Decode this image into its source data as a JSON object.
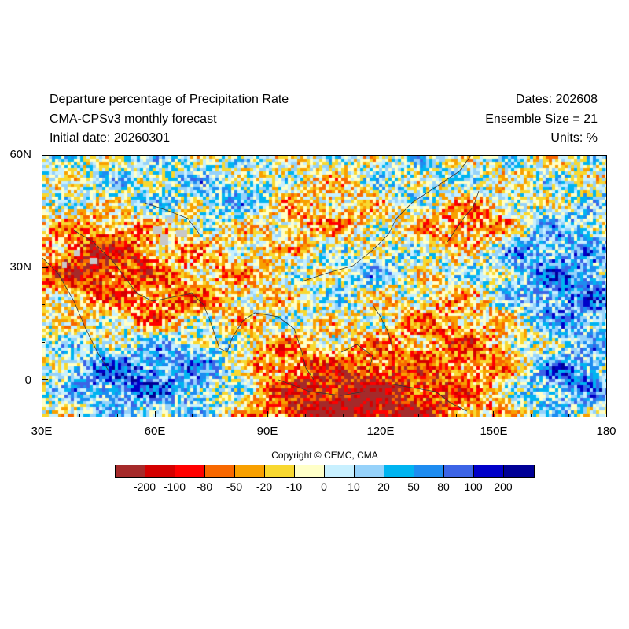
{
  "header": {
    "title": "Departure percentage of Precipitation Rate",
    "model": "CMA-CPSv3 monthly forecast",
    "initial_date": "Initial date: 20260301",
    "dates": "Dates: 202608",
    "ensemble": "Ensemble Size = 21",
    "units": "Units: %"
  },
  "map": {
    "lon_range": [
      30,
      180
    ],
    "lat_range": [
      -10,
      60
    ],
    "lat_labels": [
      {
        "text": "60N",
        "lat": 60
      },
      {
        "text": "30N",
        "lat": 30
      },
      {
        "text": "0",
        "lat": 0
      }
    ],
    "lon_labels": [
      {
        "text": "30E",
        "lon": 30
      },
      {
        "text": "60E",
        "lon": 60
      },
      {
        "text": "90E",
        "lon": 90
      },
      {
        "text": "120E",
        "lon": 120
      },
      {
        "text": "150E",
        "lon": 150
      },
      {
        "text": "180",
        "lon": 180
      }
    ]
  },
  "copyright": "Copyright © CEMC, CMA",
  "colorbar": {
    "colors": [
      "#a52a2a",
      "#d40000",
      "#ff0000",
      "#f86800",
      "#f8a000",
      "#f8d830",
      "#ffffc8",
      "#c8f0ff",
      "#96d2fa",
      "#00b4f0",
      "#1e8cf0",
      "#3c64e6",
      "#0000c8",
      "#000096"
    ],
    "labels": [
      "-200",
      "-100",
      "-80",
      "-50",
      "-20",
      "-10",
      "0",
      "10",
      "20",
      "50",
      "80",
      "100",
      "200"
    ]
  }
}
